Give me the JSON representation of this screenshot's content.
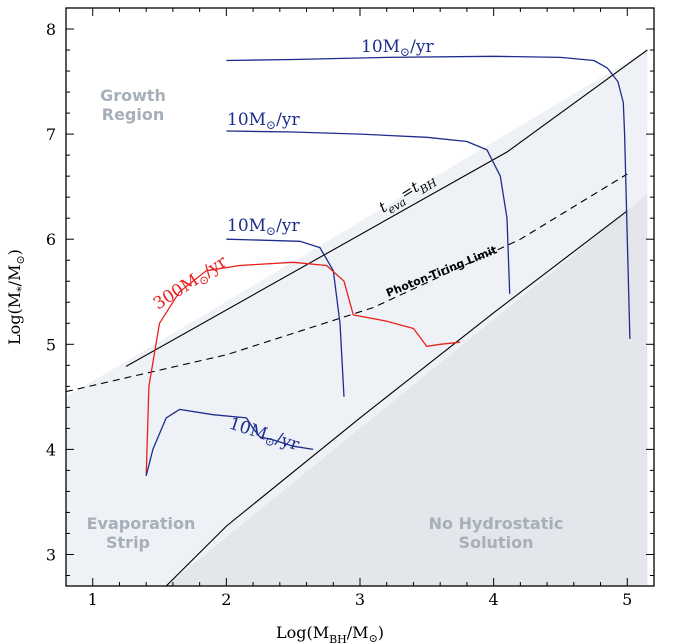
{
  "chart_data": {
    "type": "line",
    "xlabel": "Log(M_BH/M_⊙)",
    "ylabel": "Log(M_*/M_⊙)",
    "xlim": [
      0.8,
      5.2
    ],
    "ylim": [
      2.7,
      8.2
    ],
    "xticks": [
      1,
      2,
      3,
      4,
      5
    ],
    "yticks": [
      3,
      4,
      5,
      6,
      7,
      8
    ],
    "grid": false,
    "regions": {
      "growth": [
        [
          0.8,
          4.5
        ],
        [
          1.2,
          4.8
        ],
        [
          5.15,
          7.8
        ],
        [
          5.15,
          8.2
        ],
        [
          0.8,
          8.2
        ]
      ],
      "strip": [
        [
          0.8,
          4.5
        ],
        [
          1.2,
          4.8
        ],
        [
          5.15,
          7.8
        ],
        [
          5.15,
          6.43
        ],
        [
          5.0,
          6.27
        ],
        [
          1.55,
          2.7
        ],
        [
          0.8,
          2.7
        ]
      ],
      "no_solution": [
        [
          1.55,
          2.7
        ],
        [
          5.0,
          6.27
        ],
        [
          5.15,
          6.43
        ],
        [
          5.15,
          2.7
        ]
      ]
    },
    "reference_lines": [
      {
        "name": "t_eva = t_BH",
        "points": [
          [
            1.25,
            4.79
          ],
          [
            4.1,
            6.83
          ],
          [
            5.15,
            7.8
          ]
        ],
        "style": "solid"
      },
      {
        "name": "Photon-Tiring Limit",
        "points": [
          [
            0.8,
            4.55
          ],
          [
            2.0,
            4.9
          ],
          [
            3.1,
            5.35
          ],
          [
            4.2,
            6.0
          ],
          [
            5.0,
            6.62
          ]
        ],
        "style": "dashed"
      },
      {
        "name": "No Hydrostatic Solution boundary",
        "points": [
          [
            1.55,
            2.7
          ],
          [
            2.0,
            3.27
          ],
          [
            3.0,
            4.3
          ],
          [
            4.0,
            5.3
          ],
          [
            5.0,
            6.27
          ]
        ],
        "style": "solid"
      }
    ],
    "series": [
      {
        "rate": "10M⊙/yr",
        "color": "#1d2d8c",
        "points": [
          [
            2.0,
            7.7
          ],
          [
            2.5,
            7.71
          ],
          [
            3.2,
            7.73
          ],
          [
            4.0,
            7.74
          ],
          [
            4.5,
            7.73
          ],
          [
            4.75,
            7.7
          ],
          [
            4.85,
            7.63
          ],
          [
            4.93,
            7.5
          ],
          [
            4.97,
            7.3
          ],
          [
            4.98,
            7.0
          ],
          [
            5.0,
            6.0
          ],
          [
            5.02,
            5.05
          ]
        ]
      },
      {
        "rate": "10M⊙/yr",
        "color": "#1d2d8c",
        "points": [
          [
            2.0,
            7.03
          ],
          [
            2.5,
            7.02
          ],
          [
            3.0,
            7.0
          ],
          [
            3.5,
            6.97
          ],
          [
            3.8,
            6.93
          ],
          [
            3.95,
            6.85
          ],
          [
            4.05,
            6.6
          ],
          [
            4.1,
            6.2
          ],
          [
            4.12,
            5.48
          ]
        ]
      },
      {
        "rate": "10M⊙/yr",
        "color": "#1d2d8c",
        "points": [
          [
            2.0,
            6.0
          ],
          [
            2.3,
            5.99
          ],
          [
            2.55,
            5.98
          ],
          [
            2.7,
            5.92
          ],
          [
            2.8,
            5.7
          ],
          [
            2.85,
            5.2
          ],
          [
            2.88,
            4.5
          ]
        ]
      },
      {
        "rate": "300M⊙/yr",
        "color": "#e8211d",
        "points": [
          [
            1.4,
            3.75
          ],
          [
            1.42,
            4.6
          ],
          [
            1.5,
            5.2
          ],
          [
            1.65,
            5.5
          ],
          [
            1.85,
            5.7
          ],
          [
            2.1,
            5.75
          ],
          [
            2.5,
            5.78
          ],
          [
            2.75,
            5.75
          ],
          [
            2.88,
            5.6
          ],
          [
            2.95,
            5.28
          ],
          [
            3.2,
            5.22
          ],
          [
            3.4,
            5.15
          ],
          [
            3.5,
            4.98
          ],
          [
            3.6,
            5.0
          ],
          [
            3.75,
            5.02
          ]
        ]
      },
      {
        "rate": "10M⊙/yr",
        "color": "#1d2d8c",
        "points": [
          [
            1.4,
            3.75
          ],
          [
            1.45,
            4.0
          ],
          [
            1.55,
            4.3
          ],
          [
            1.65,
            4.38
          ],
          [
            1.9,
            4.33
          ],
          [
            2.15,
            4.3
          ],
          [
            2.2,
            4.2
          ],
          [
            2.25,
            4.12
          ],
          [
            2.35,
            4.09
          ],
          [
            2.5,
            4.03
          ],
          [
            2.65,
            4.0
          ]
        ]
      }
    ],
    "annotations": [
      "Growth Region",
      "Evaporation Strip",
      "No Hydrostatic Solution",
      "t_eva = t_BH",
      "Photon-Tiring Limit"
    ]
  },
  "regions": {
    "growth_line1": "Growth",
    "growth_line2": "Region",
    "evap_line1": "Evaporation",
    "evap_line2": "Strip",
    "nohydro_line1": "No Hydrostatic",
    "nohydro_line2": "Solution"
  },
  "labels": {
    "teva": "t",
    "teva_sub": "eva",
    "teva_eq": "=t",
    "teva_sub2": "BH",
    "photon": "Photon-Tiring Limit",
    "rate10_a": "10M",
    "rate10_b": "/yr",
    "rate300_a": "300M",
    "rate300_b": "/yr",
    "sun": "⊙"
  },
  "axes": {
    "xlabel_a": "Log(M",
    "xlabel_sub": "BH",
    "xlabel_b": "/M",
    "xlabel_sun": "⊙",
    "xlabel_c": ")",
    "ylabel_a": "Log(M",
    "ylabel_sub": "*",
    "ylabel_b": "/M",
    "ylabel_sun": "⊙",
    "ylabel_c": ")"
  },
  "colors": {
    "growth": "#ffffff",
    "strip": "#eef1f5",
    "no_solution": "#e3e6ea",
    "blue": "#1d2d8c",
    "red": "#e8211d"
  }
}
